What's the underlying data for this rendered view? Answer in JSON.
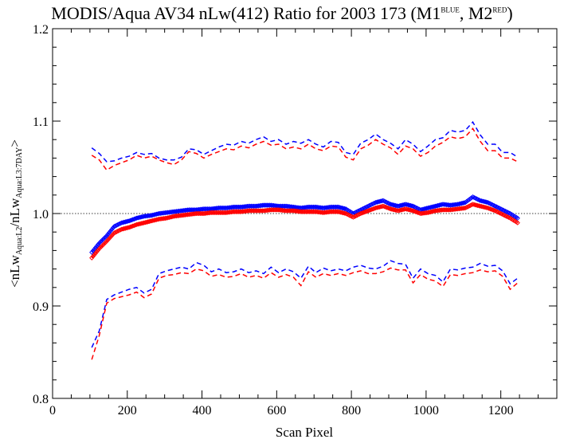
{
  "chart_data": {
    "type": "line",
    "title": {
      "main": "MODIS/Aqua AV34 nLw(412) Ratio for 2003 173 (M1",
      "sup1": "BLUE",
      "mid": ", M2",
      "sup2": "RED",
      "end": ")"
    },
    "xlabel": "Scan Pixel",
    "ylabel": {
      "p1": "<nLw",
      "s1": "Aqua:L2",
      "p2": "/nLw",
      "s2": "Aqua:L3:7DAY",
      "p3": ">"
    },
    "xlim": [
      0,
      1350
    ],
    "ylim": [
      0.8,
      1.2
    ],
    "x_ticks": [
      0,
      200,
      400,
      600,
      800,
      1000,
      1200
    ],
    "x_tick_labels": [
      "0",
      "200",
      "400",
      "600",
      "800",
      "1000",
      "1200"
    ],
    "y_ticks": [
      0.8,
      0.9,
      1.0,
      1.1,
      1.2
    ],
    "y_tick_labels": [
      "0.8",
      "0.9",
      "1.0",
      "1.1",
      "1.2"
    ],
    "reference_line": 1.0,
    "x": [
      105,
      125,
      145,
      165,
      185,
      205,
      225,
      245,
      265,
      285,
      305,
      325,
      345,
      365,
      385,
      405,
      425,
      445,
      465,
      485,
      505,
      525,
      545,
      565,
      585,
      605,
      625,
      645,
      665,
      685,
      705,
      725,
      745,
      765,
      785,
      805,
      825,
      845,
      865,
      885,
      905,
      925,
      945,
      965,
      985,
      1005,
      1025,
      1045,
      1065,
      1085,
      1105,
      1125,
      1145,
      1165,
      1185,
      1205,
      1225,
      1245
    ],
    "series": [
      {
        "name": "M1",
        "color": "#0000ff",
        "role": "mean",
        "values": [
          0.958,
          0.968,
          0.976,
          0.986,
          0.99,
          0.992,
          0.995,
          0.997,
          0.998,
          1.0,
          1.001,
          1.002,
          1.003,
          1.004,
          1.004,
          1.005,
          1.005,
          1.006,
          1.006,
          1.007,
          1.007,
          1.008,
          1.008,
          1.009,
          1.009,
          1.008,
          1.008,
          1.007,
          1.006,
          1.007,
          1.007,
          1.006,
          1.007,
          1.007,
          1.005,
          1.0,
          1.004,
          1.008,
          1.012,
          1.014,
          1.01,
          1.008,
          1.01,
          1.008,
          1.004,
          1.006,
          1.008,
          1.01,
          1.009,
          1.01,
          1.012,
          1.018,
          1.014,
          1.012,
          1.008,
          1.004,
          1.0,
          0.995
        ]
      },
      {
        "name": "M2",
        "color": "#ff0000",
        "role": "mean",
        "values": [
          0.952,
          0.962,
          0.97,
          0.979,
          0.983,
          0.985,
          0.988,
          0.99,
          0.992,
          0.994,
          0.995,
          0.997,
          0.998,
          0.999,
          1.0,
          1.0,
          1.001,
          1.001,
          1.001,
          1.002,
          1.002,
          1.003,
          1.003,
          1.003,
          1.004,
          1.004,
          1.003,
          1.003,
          1.002,
          1.002,
          1.002,
          1.001,
          1.002,
          1.002,
          1.0,
          0.996,
          1.0,
          1.003,
          1.006,
          1.008,
          1.005,
          1.003,
          1.005,
          1.003,
          1.0,
          1.001,
          1.003,
          1.004,
          1.004,
          1.005,
          1.006,
          1.01,
          1.008,
          1.006,
          1.003,
          0.999,
          0.995,
          0.99
        ]
      },
      {
        "name": "M1",
        "color": "#0000ff",
        "role": "upper",
        "values": [
          1.071,
          1.065,
          1.056,
          1.057,
          1.06,
          1.062,
          1.066,
          1.064,
          1.065,
          1.06,
          1.058,
          1.058,
          1.061,
          1.07,
          1.069,
          1.064,
          1.068,
          1.072,
          1.075,
          1.074,
          1.078,
          1.076,
          1.08,
          1.083,
          1.078,
          1.08,
          1.075,
          1.078,
          1.076,
          1.08,
          1.075,
          1.072,
          1.078,
          1.077,
          1.066,
          1.064,
          1.076,
          1.08,
          1.086,
          1.08,
          1.076,
          1.07,
          1.08,
          1.075,
          1.067,
          1.073,
          1.08,
          1.082,
          1.09,
          1.088,
          1.09,
          1.099,
          1.085,
          1.075,
          1.075,
          1.066,
          1.066,
          1.061
        ]
      },
      {
        "name": "M2",
        "color": "#ff0000",
        "role": "upper",
        "values": [
          1.063,
          1.058,
          1.047,
          1.052,
          1.055,
          1.058,
          1.063,
          1.06,
          1.062,
          1.058,
          1.055,
          1.053,
          1.058,
          1.067,
          1.065,
          1.06,
          1.064,
          1.067,
          1.07,
          1.069,
          1.073,
          1.071,
          1.075,
          1.078,
          1.074,
          1.075,
          1.07,
          1.072,
          1.07,
          1.075,
          1.07,
          1.068,
          1.073,
          1.072,
          1.061,
          1.058,
          1.07,
          1.074,
          1.08,
          1.075,
          1.071,
          1.064,
          1.073,
          1.07,
          1.062,
          1.066,
          1.073,
          1.077,
          1.083,
          1.081,
          1.083,
          1.092,
          1.078,
          1.068,
          1.068,
          1.06,
          1.06,
          1.056
        ]
      },
      {
        "name": "M1",
        "color": "#0000ff",
        "role": "lower",
        "values": [
          0.855,
          0.873,
          0.907,
          0.912,
          0.915,
          0.918,
          0.92,
          0.914,
          0.918,
          0.935,
          0.938,
          0.94,
          0.942,
          0.94,
          0.947,
          0.944,
          0.937,
          0.94,
          0.936,
          0.937,
          0.94,
          0.936,
          0.938,
          0.935,
          0.942,
          0.936,
          0.94,
          0.937,
          0.93,
          0.943,
          0.936,
          0.941,
          0.938,
          0.94,
          0.938,
          0.942,
          0.944,
          0.941,
          0.94,
          0.943,
          0.949,
          0.946,
          0.945,
          0.93,
          0.94,
          0.935,
          0.933,
          0.926,
          0.94,
          0.939,
          0.941,
          0.942,
          0.946,
          0.943,
          0.944,
          0.938,
          0.924,
          0.93
        ]
      },
      {
        "name": "M2",
        "color": "#ff0000",
        "role": "lower",
        "values": [
          0.842,
          0.868,
          0.903,
          0.908,
          0.91,
          0.912,
          0.915,
          0.909,
          0.913,
          0.93,
          0.933,
          0.934,
          0.936,
          0.935,
          0.94,
          0.938,
          0.932,
          0.934,
          0.931,
          0.932,
          0.935,
          0.931,
          0.933,
          0.93,
          0.936,
          0.931,
          0.934,
          0.931,
          0.922,
          0.937,
          0.931,
          0.935,
          0.933,
          0.935,
          0.933,
          0.936,
          0.938,
          0.935,
          0.935,
          0.937,
          0.941,
          0.939,
          0.939,
          0.925,
          0.934,
          0.929,
          0.927,
          0.921,
          0.934,
          0.933,
          0.935,
          0.936,
          0.939,
          0.937,
          0.938,
          0.932,
          0.918,
          0.925
        ]
      }
    ]
  }
}
